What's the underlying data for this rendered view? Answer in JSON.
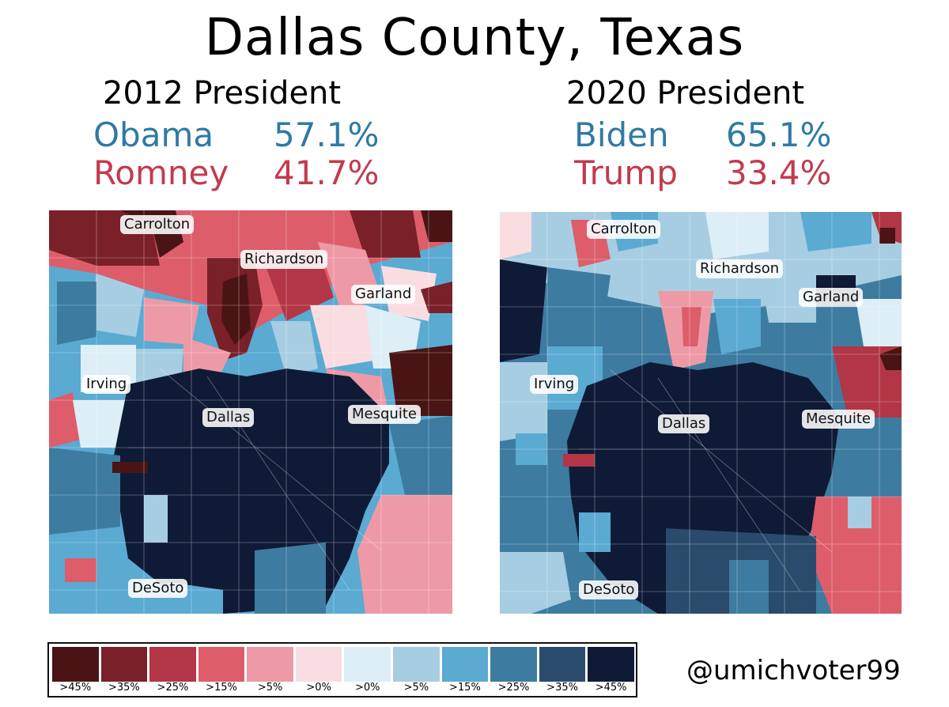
{
  "title": "Dallas County, Texas",
  "left": {
    "subtitle": "2012 President",
    "dem_name": "Obama",
    "dem_pct": "57.1%",
    "rep_name": "Romney",
    "rep_pct": "41.7%",
    "cities": [
      "Carrolton",
      "Richardson",
      "Garland",
      "Irving",
      "Dallas",
      "Mesquite",
      "DeSoto"
    ]
  },
  "right": {
    "subtitle": "2020 President",
    "dem_name": "Biden",
    "dem_pct": "65.1%",
    "rep_name": "Trump",
    "rep_pct": "33.4%",
    "cities": [
      "Carrolton",
      "Richardson",
      "Garland",
      "Irving",
      "Dallas",
      "Mesquite",
      "DeSoto"
    ]
  },
  "colors": {
    "dem_text": "#2f7aa4",
    "rep_text": "#c33a4f"
  },
  "legend": {
    "labels": [
      ">45%",
      ">35%",
      ">25%",
      ">15%",
      ">5%",
      ">0%",
      ">0%",
      ">5%",
      ">15%",
      ">25%",
      ">35%",
      ">45%"
    ],
    "colors": [
      "#4a1414",
      "#7a2028",
      "#b23645",
      "#dd5d6b",
      "#ee9aa6",
      "#f9dde1",
      "#ddeef6",
      "#a7cde2",
      "#5aaad2",
      "#3d7ba0",
      "#2a4b6c",
      "#0f1a36"
    ]
  },
  "handle": "@umichvoter99"
}
